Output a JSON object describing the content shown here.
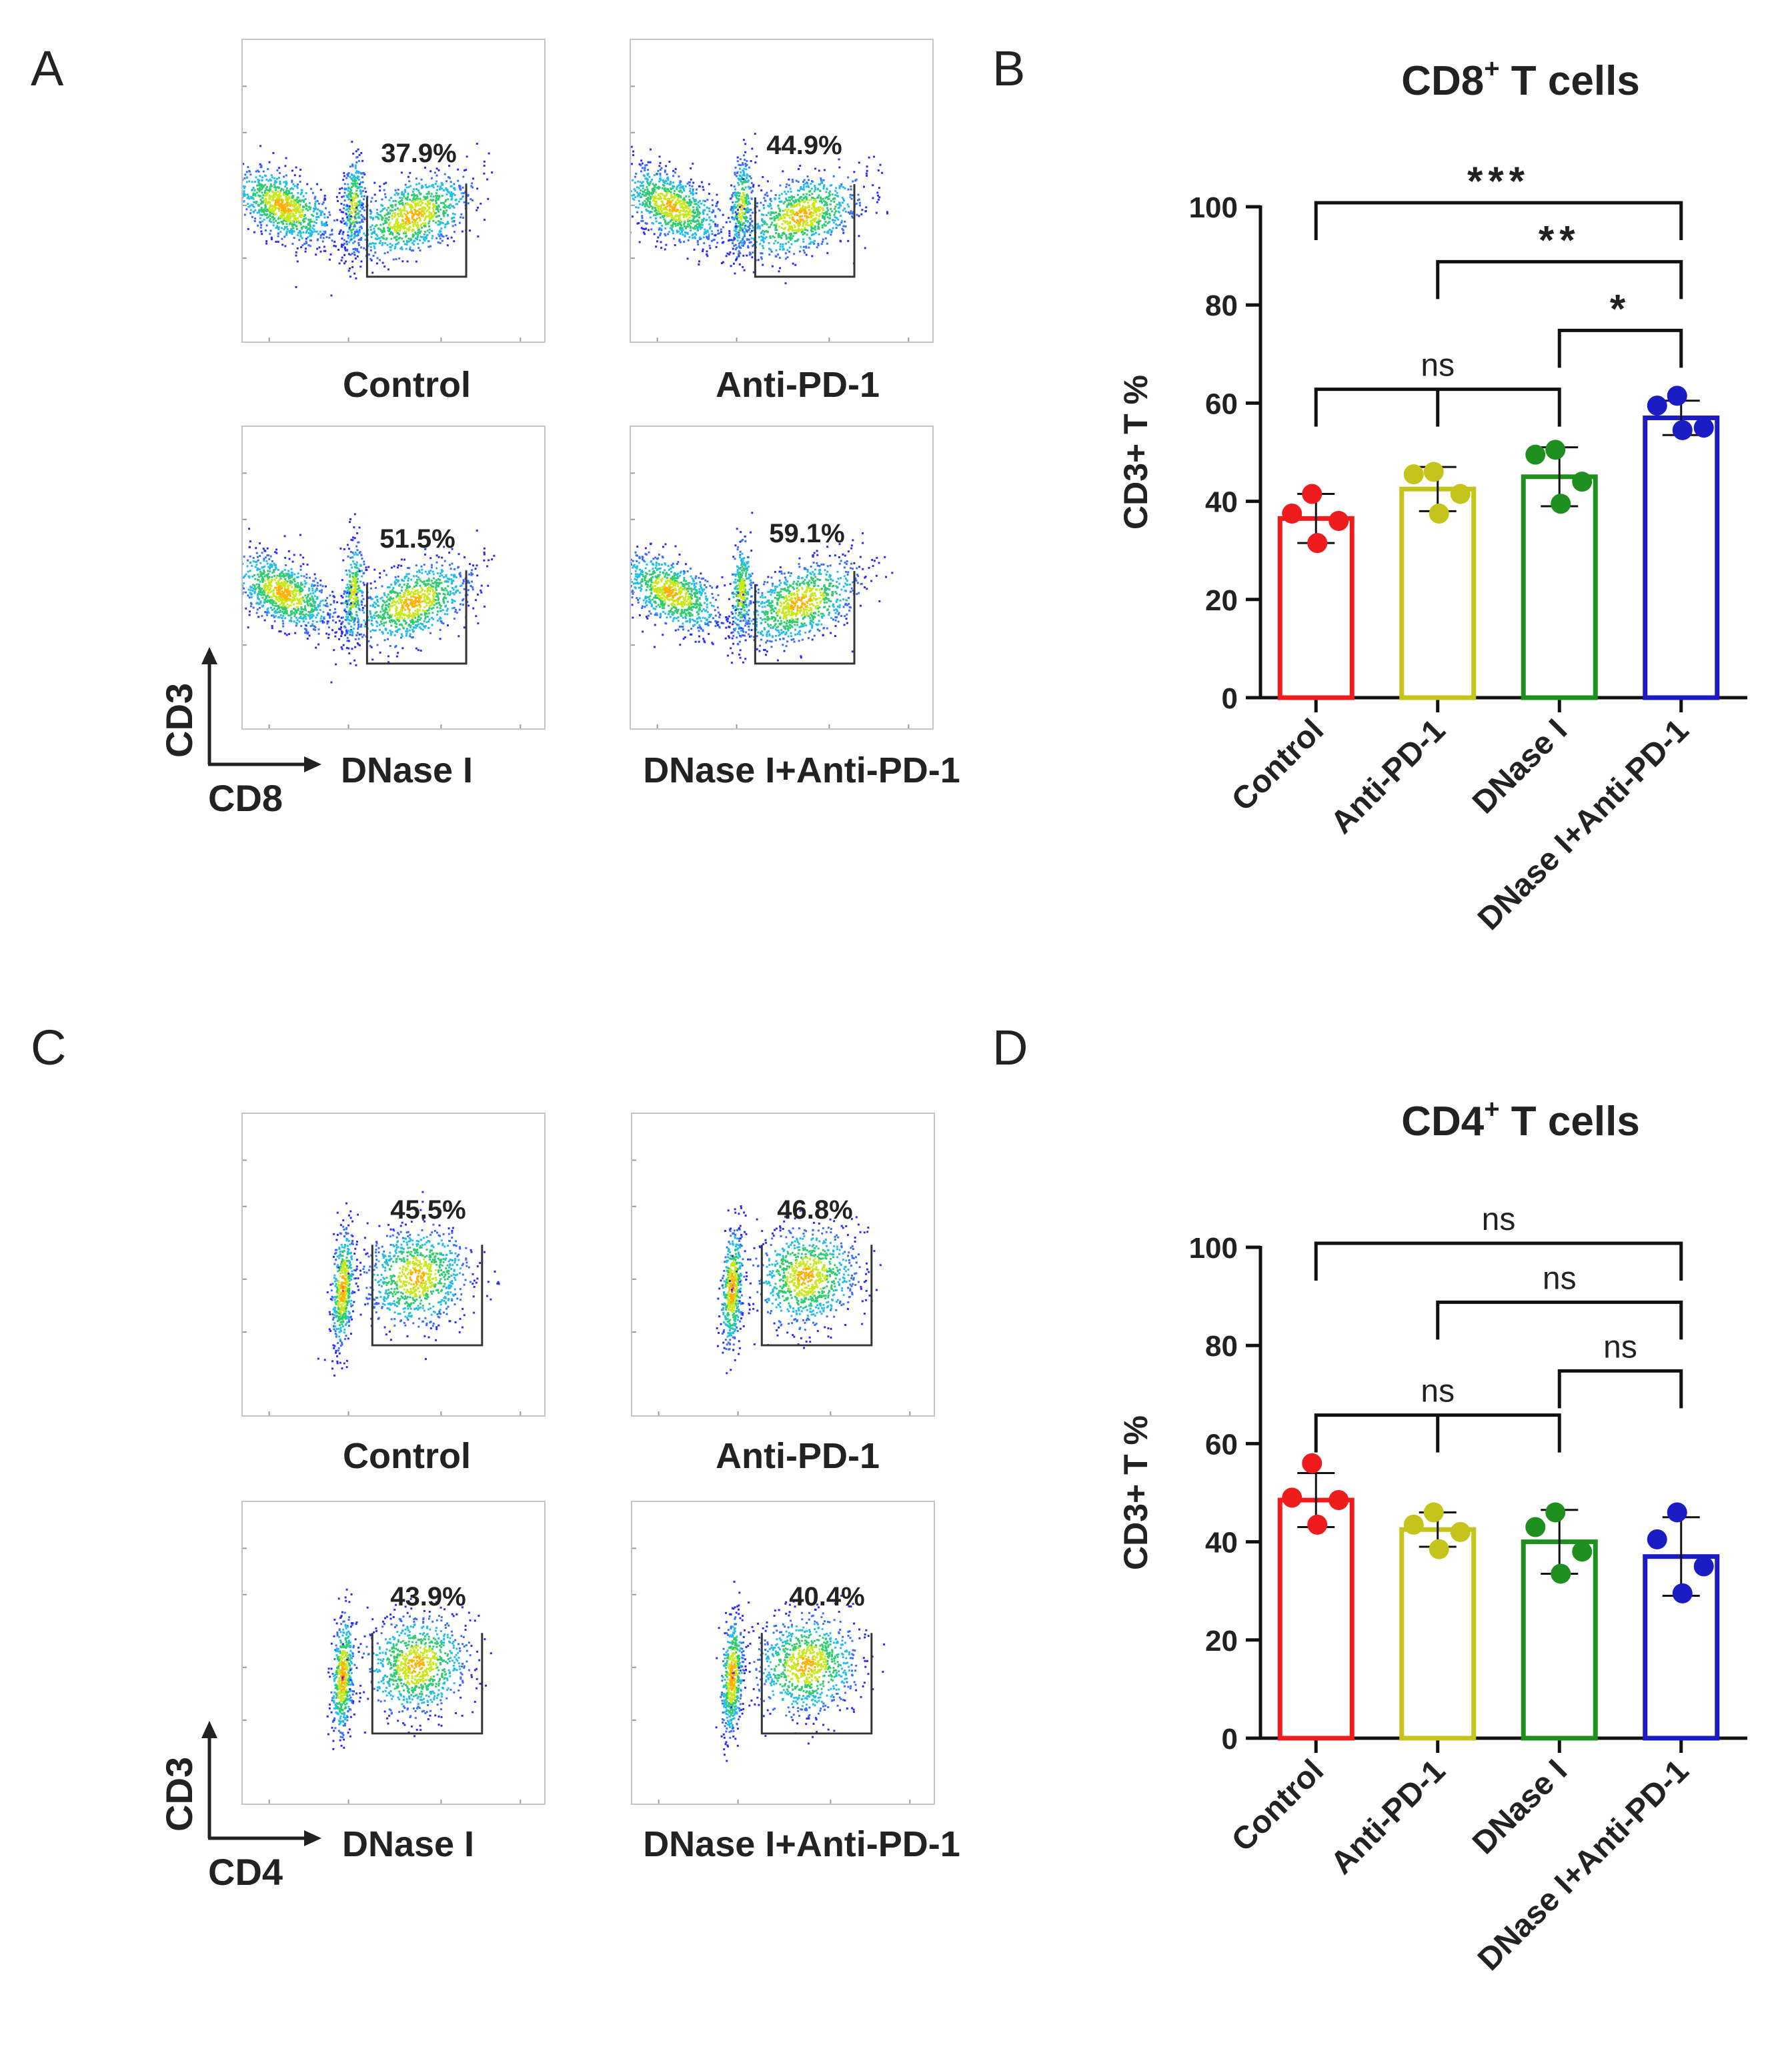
{
  "panels": {
    "A": {
      "letter": "A",
      "plots": [
        {
          "label": "Control",
          "gate_pct": "37.9%"
        },
        {
          "label": "Anti-PD-1",
          "gate_pct": "44.9%"
        },
        {
          "label": "DNase I",
          "gate_pct": "51.5%"
        },
        {
          "label": "DNase I+Anti-PD-1",
          "gate_pct": "59.1%"
        }
      ],
      "y_axis": "CD3",
      "x_axis": "CD8"
    },
    "C": {
      "letter": "C",
      "plots": [
        {
          "label": "Control",
          "gate_pct": "45.5%"
        },
        {
          "label": "Anti-PD-1",
          "gate_pct": "46.8%"
        },
        {
          "label": "DNase I",
          "gate_pct": "43.9%"
        },
        {
          "label": "DNase I+Anti-PD-1",
          "gate_pct": "40.4%"
        }
      ],
      "y_axis": "CD3",
      "x_axis": "CD4"
    }
  },
  "letters": {
    "B": "B",
    "D": "D"
  },
  "colors": {
    "control": "#ee1c1c",
    "anti_pd1": "#c5c41c",
    "dnase": "#1f8f1f",
    "combo": "#1c1cc4"
  },
  "chart_data": [
    {
      "id": "B",
      "type": "bar",
      "title_main": "CD8",
      "title_sup": "+",
      "title_rest": " T cells",
      "ylabel": "CD3+ T %",
      "ylim": [
        0,
        100
      ],
      "yticks": [
        0,
        20,
        40,
        60,
        80,
        100
      ],
      "categories": [
        "Control",
        "Anti-PD-1",
        "DNase I",
        "DNase I+Anti-PD-1"
      ],
      "values": [
        36.5,
        42.5,
        45,
        57
      ],
      "errors": [
        5,
        4.5,
        6,
        3.5
      ],
      "points": [
        [
          41.5,
          37.5,
          36,
          31.5
        ],
        [
          46,
          45.5,
          41.5,
          37.5
        ],
        [
          50.5,
          49.5,
          44,
          39.5
        ],
        [
          61.5,
          59.5,
          55,
          54.5
        ]
      ],
      "comparisons": [
        {
          "from": 0,
          "to": 3,
          "label": "***",
          "level": 100
        },
        {
          "from": 1,
          "to": 3,
          "label": "**",
          "level": 88
        },
        {
          "from": 2,
          "to": 3,
          "label": "*",
          "level": 74
        },
        {
          "from": 0,
          "to": 2,
          "label": "ns",
          "level": 62,
          "inner_tick": 1
        }
      ]
    },
    {
      "id": "D",
      "type": "bar",
      "title_main": "CD4",
      "title_sup": "+",
      "title_rest": " T cells",
      "ylabel": "CD3+ T %",
      "ylim": [
        0,
        100
      ],
      "yticks": [
        0,
        20,
        40,
        60,
        80,
        100
      ],
      "categories": [
        "Control",
        "Anti-PD-1",
        "DNase I",
        "DNase I+Anti-PD-1"
      ],
      "values": [
        48.5,
        42.5,
        40,
        37
      ],
      "errors": [
        5.5,
        3.5,
        6.5,
        8
      ],
      "points": [
        [
          56,
          49,
          48.5,
          43.5
        ],
        [
          46,
          43.5,
          42,
          38.5
        ],
        [
          46,
          43,
          38,
          33.5
        ],
        [
          46,
          40.5,
          35,
          29.5
        ]
      ],
      "comparisons": [
        {
          "from": 0,
          "to": 3,
          "label": "ns",
          "level": 100
        },
        {
          "from": 1,
          "to": 3,
          "label": "ns",
          "level": 88
        },
        {
          "from": 2,
          "to": 3,
          "label": "ns",
          "level": 74
        },
        {
          "from": 0,
          "to": 2,
          "label": "ns",
          "level": 65,
          "inner_tick": 1
        }
      ]
    }
  ]
}
